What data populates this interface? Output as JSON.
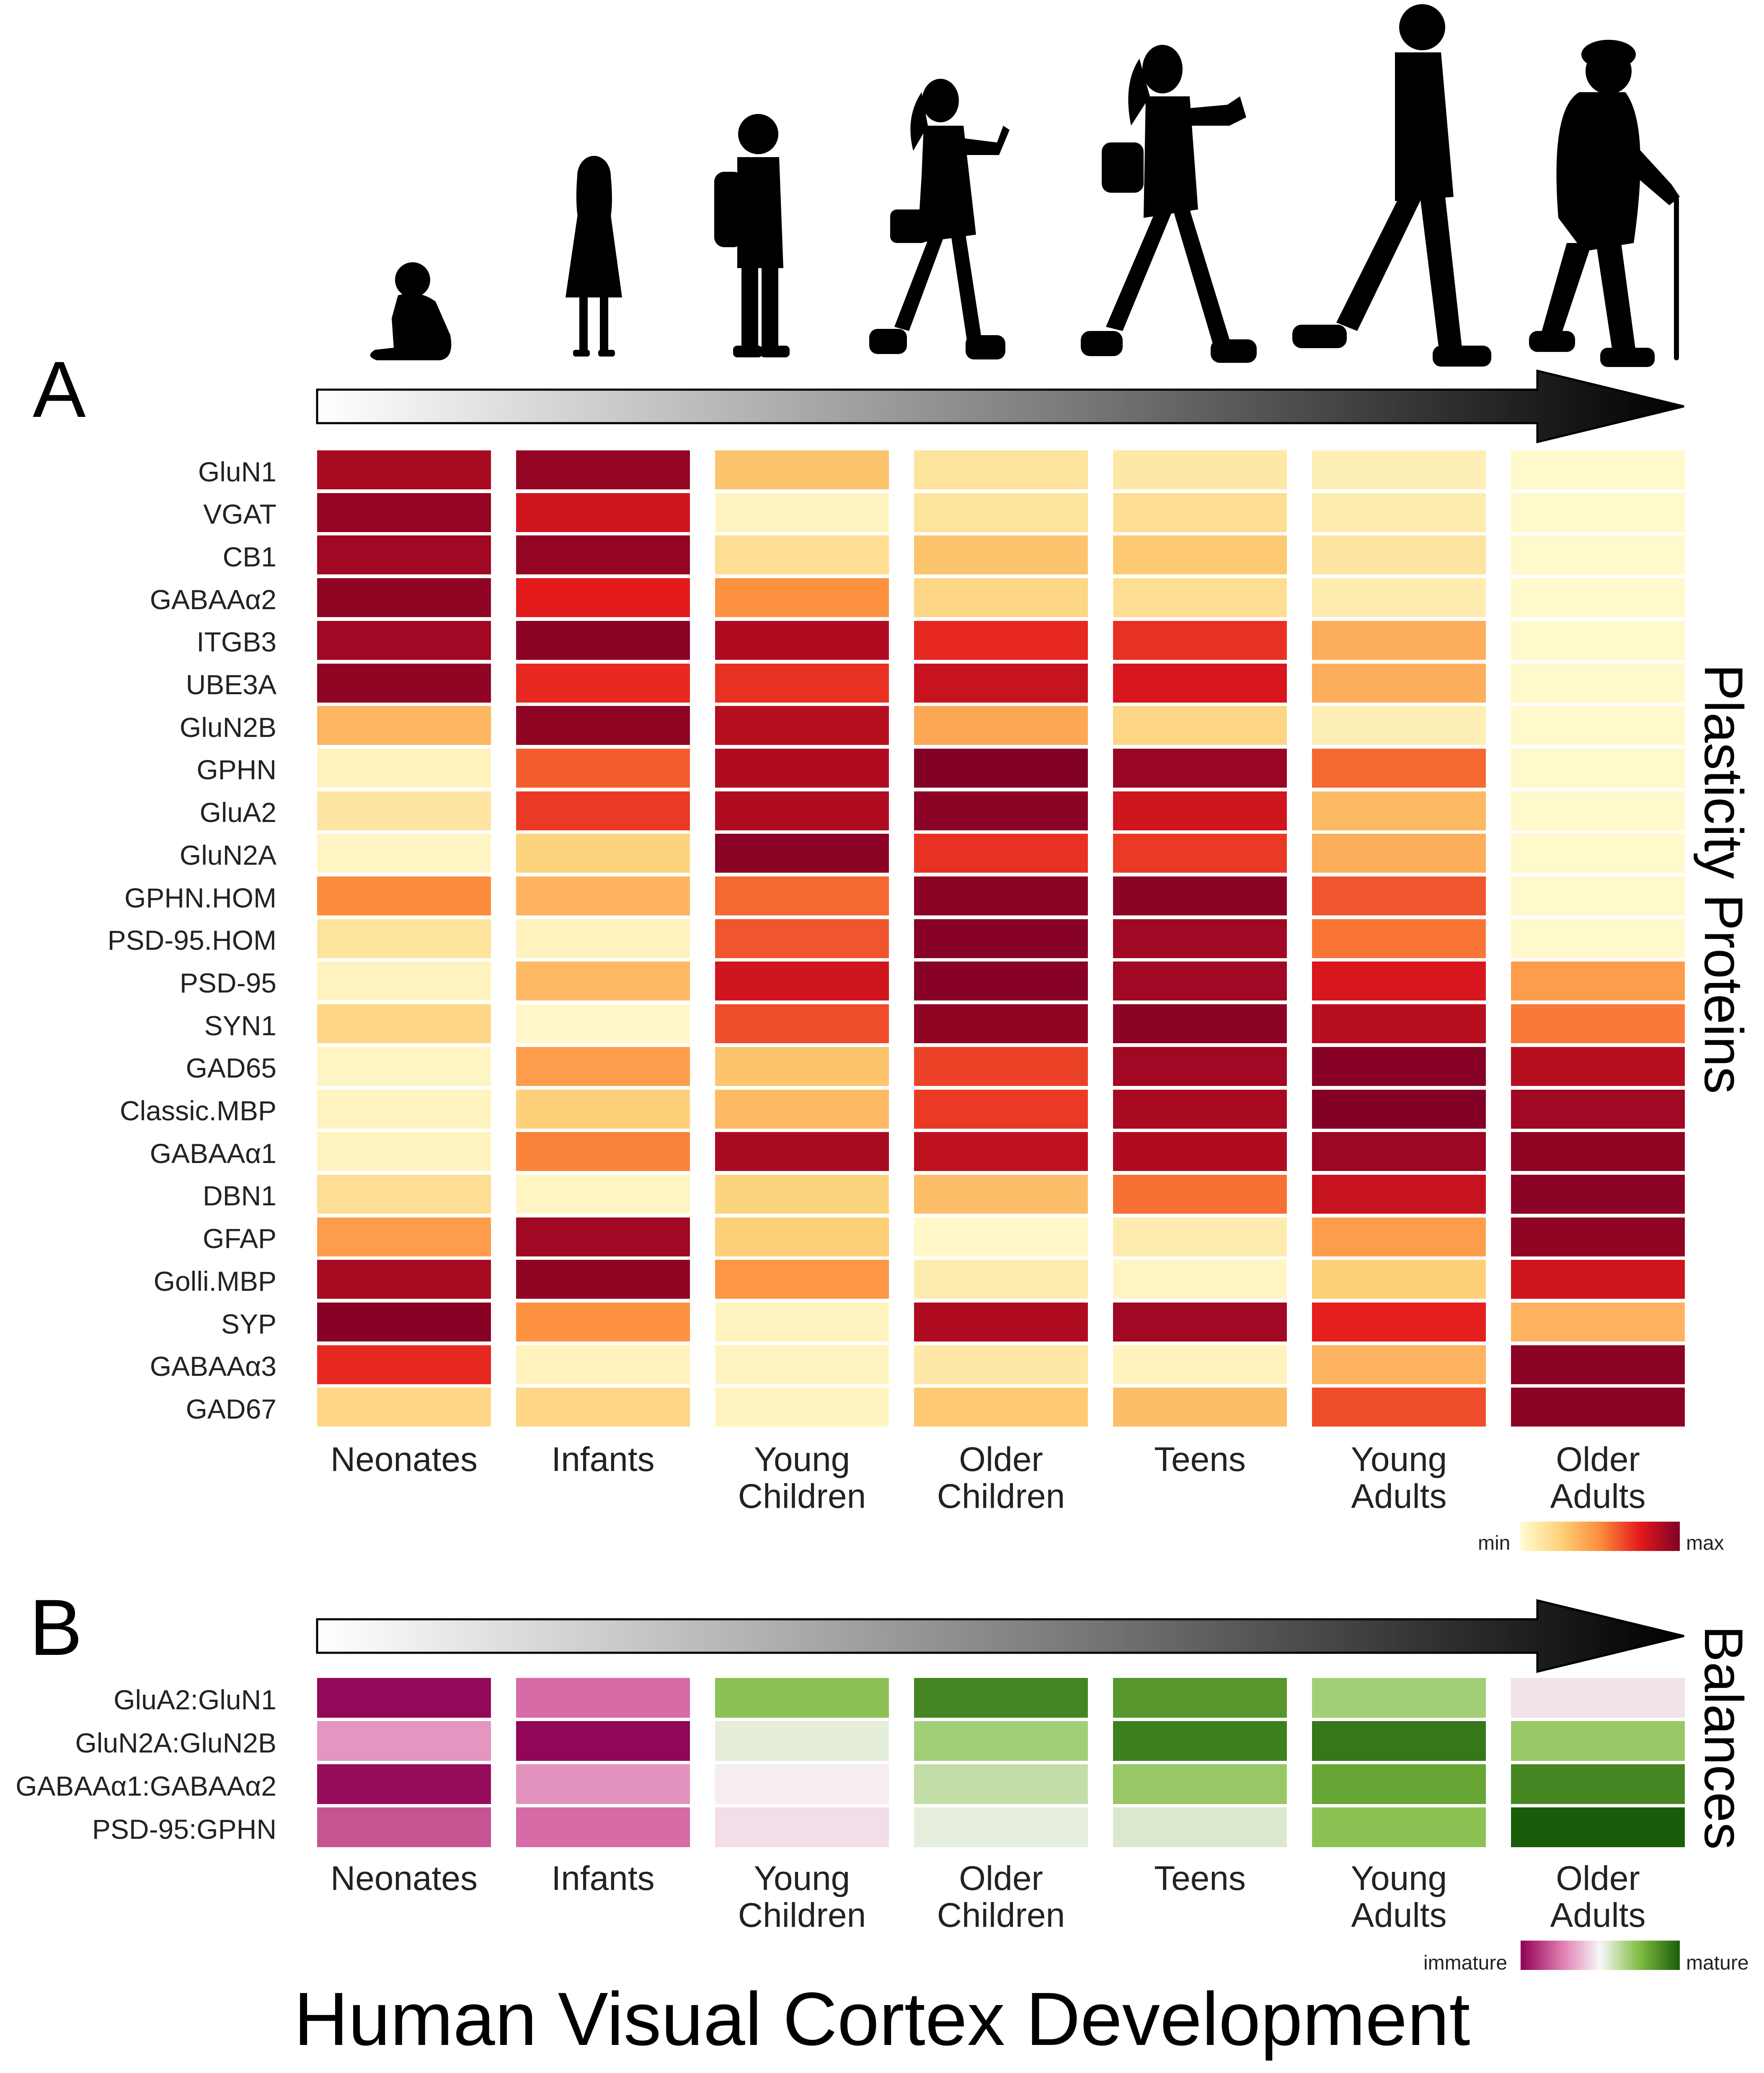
{
  "figure_title": "Human Visual Cortex Development",
  "panels": {
    "a": {
      "letter": "A",
      "side_title": "Plasticity Proteins",
      "legend": {
        "min_label": "min",
        "max_label": "max",
        "colors": [
          "#fffcd2",
          "#fdd27a",
          "#fd8c3c",
          "#e31a1c",
          "#800026"
        ]
      }
    },
    "b": {
      "letter": "B",
      "side_title": "Balances",
      "legend": {
        "min_label": "immature",
        "max_label": "mature",
        "colors": [
          "#8e0152",
          "#de77ae",
          "#f7f7f7",
          "#7fbc41",
          "#1a5c0a"
        ]
      }
    }
  },
  "silhouettes": [
    "baby-icon",
    "girl-icon",
    "boy-with-backpack-icon",
    "teen-girl-with-phone-icon",
    "young-woman-with-camera-icon",
    "adult-man-walking-icon",
    "elderly-man-with-cane-icon"
  ],
  "chart_data": [
    {
      "type": "heatmap",
      "title": "Plasticity Proteins",
      "scale": {
        "min": 0,
        "max": 1,
        "min_label": "min",
        "max_label": "max"
      },
      "x": [
        "Neonates",
        "Infants",
        "Young\nChildren",
        "Older\nChildren",
        "Teens",
        "Young\nAdults",
        "Older\nAdults"
      ],
      "y": [
        "GluN1",
        "VGAT",
        "CB1",
        "GABAAα2",
        "ITGB3",
        "UBE3A",
        "GluN2B",
        "GPHN",
        "GluA2",
        "GluN2A",
        "GPHN.HOM",
        "PSD-95.HOM",
        "PSD-95",
        "SYN1",
        "GAD65",
        "Classic.MBP",
        "GABAAα1",
        "DBN1",
        "GFAP",
        "Golli.MBP",
        "SYP",
        "GABAAα3",
        "GAD67"
      ],
      "values": [
        [
          0.9,
          0.95,
          0.3,
          0.15,
          0.12,
          0.08,
          0.02
        ],
        [
          0.95,
          0.8,
          0.05,
          0.15,
          0.18,
          0.1,
          0.02
        ],
        [
          0.92,
          0.95,
          0.18,
          0.3,
          0.28,
          0.14,
          0.02
        ],
        [
          0.96,
          0.75,
          0.48,
          0.22,
          0.18,
          0.1,
          0.02
        ],
        [
          0.92,
          0.97,
          0.88,
          0.72,
          0.7,
          0.38,
          0.02
        ],
        [
          0.96,
          0.72,
          0.7,
          0.82,
          0.78,
          0.38,
          0.02
        ],
        [
          0.35,
          0.96,
          0.86,
          0.4,
          0.22,
          0.08,
          0.02
        ],
        [
          0.06,
          0.6,
          0.88,
          0.99,
          0.94,
          0.58,
          0.02
        ],
        [
          0.14,
          0.68,
          0.88,
          0.97,
          0.8,
          0.34,
          0.02
        ],
        [
          0.04,
          0.24,
          0.97,
          0.7,
          0.68,
          0.38,
          0.02
        ],
        [
          0.5,
          0.36,
          0.58,
          0.97,
          0.97,
          0.62,
          0.02
        ],
        [
          0.15,
          0.06,
          0.62,
          0.98,
          0.92,
          0.55,
          0.02
        ],
        [
          0.05,
          0.34,
          0.8,
          0.98,
          0.92,
          0.78,
          0.44
        ],
        [
          0.22,
          0.03,
          0.64,
          0.96,
          0.97,
          0.86,
          0.54
        ],
        [
          0.04,
          0.44,
          0.3,
          0.66,
          0.92,
          0.98,
          0.86
        ],
        [
          0.05,
          0.26,
          0.34,
          0.68,
          0.9,
          0.99,
          0.92
        ],
        [
          0.05,
          0.52,
          0.9,
          0.84,
          0.88,
          0.93,
          0.96
        ],
        [
          0.18,
          0.04,
          0.24,
          0.32,
          0.56,
          0.82,
          0.97
        ],
        [
          0.44,
          0.92,
          0.26,
          0.03,
          0.1,
          0.44,
          0.96
        ],
        [
          0.9,
          0.96,
          0.46,
          0.1,
          0.04,
          0.26,
          0.8
        ],
        [
          0.98,
          0.48,
          0.05,
          0.88,
          0.92,
          0.74,
          0.36
        ],
        [
          0.72,
          0.06,
          0.05,
          0.12,
          0.06,
          0.36,
          0.97
        ],
        [
          0.22,
          0.22,
          0.05,
          0.28,
          0.32,
          0.64,
          0.97
        ]
      ]
    },
    {
      "type": "heatmap",
      "title": "Balances",
      "scale": {
        "min": -1,
        "max": 1,
        "min_label": "immature",
        "max_label": "mature"
      },
      "x": [
        "Neonates",
        "Infants",
        "Young\nChildren",
        "Older\nChildren",
        "Teens",
        "Young\nAdults",
        "Older\nAdults"
      ],
      "y": [
        "GluA2:GluN1",
        "GluN2A:GluN2B",
        "GABAAα1:GABAAα2",
        "PSD-95:GPHN"
      ],
      "values": [
        [
          -0.97,
          -0.55,
          0.45,
          0.78,
          0.7,
          0.35,
          -0.08
        ],
        [
          -0.38,
          -0.98,
          0.08,
          0.35,
          0.82,
          0.86,
          0.4
        ],
        [
          -0.95,
          -0.4,
          -0.04,
          0.22,
          0.4,
          0.62,
          0.78
        ],
        [
          -0.65,
          -0.55,
          -0.1,
          0.07,
          0.12,
          0.45,
          1.0
        ]
      ]
    }
  ]
}
